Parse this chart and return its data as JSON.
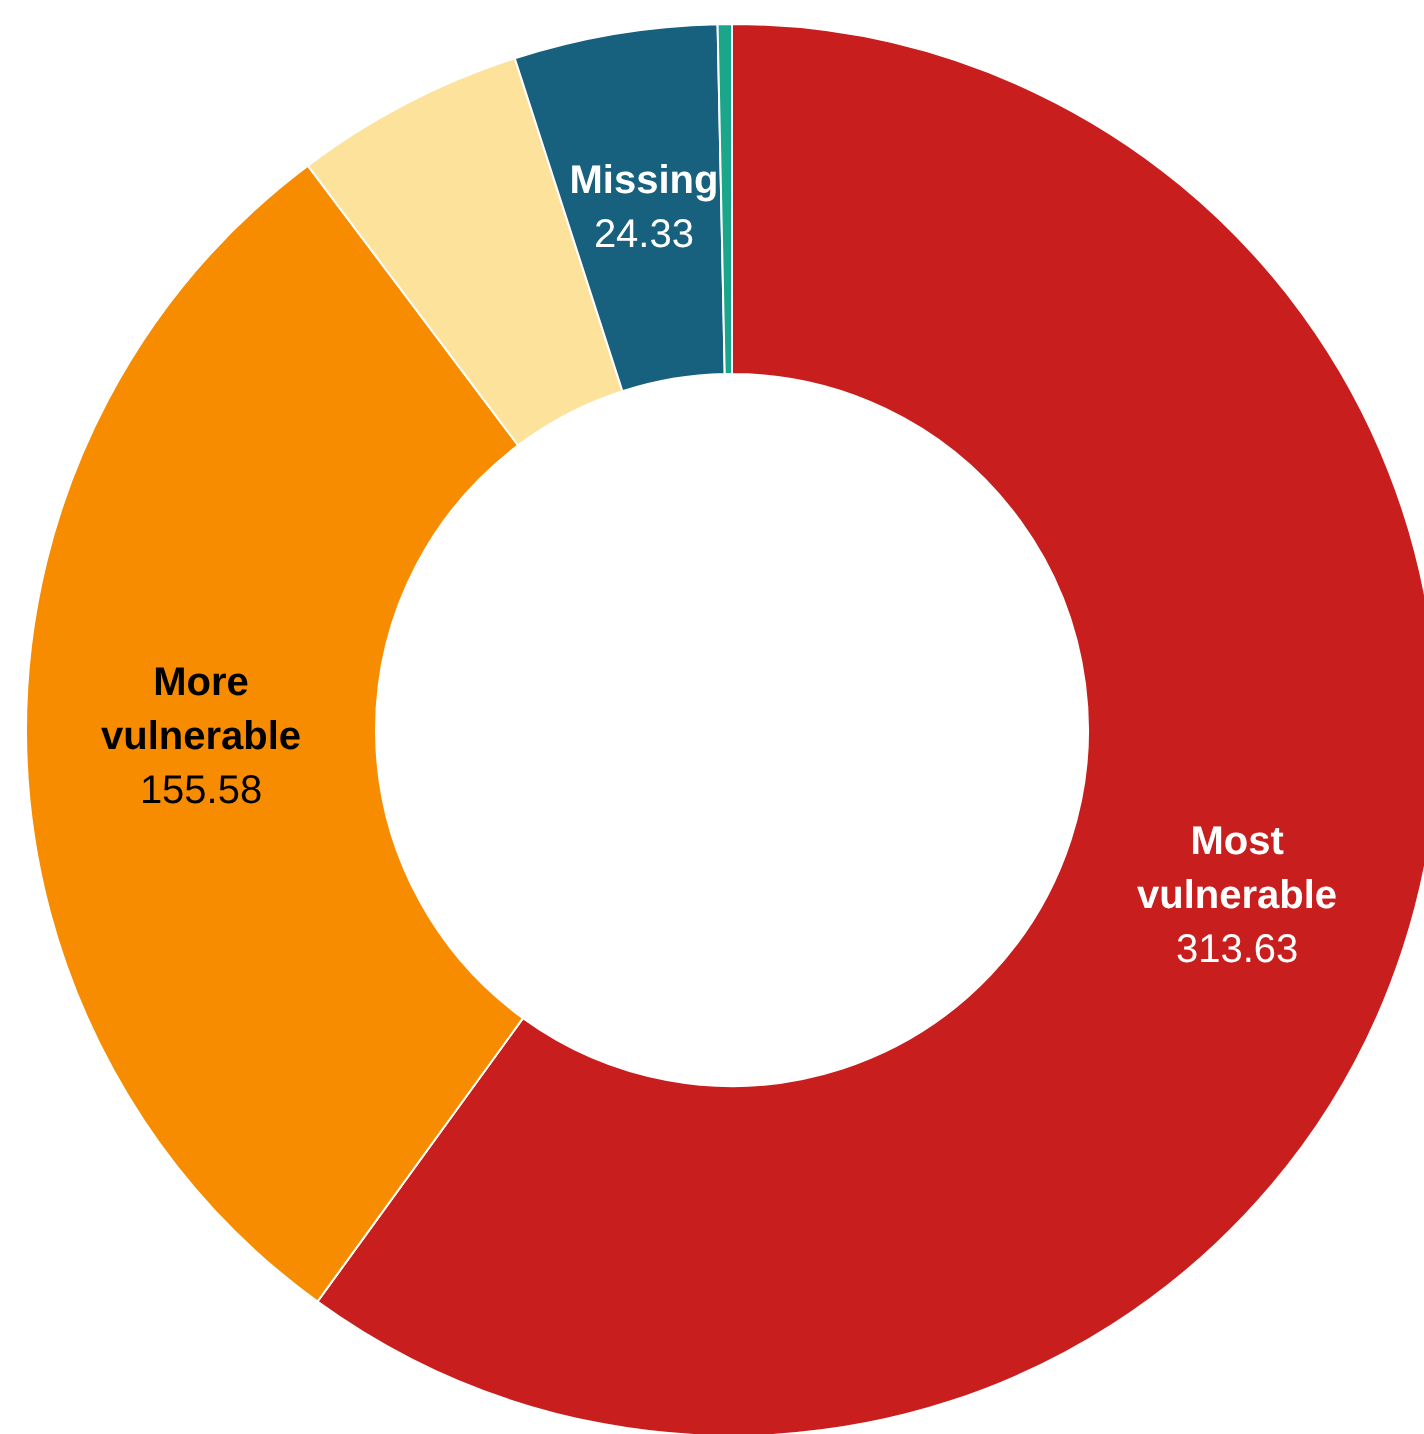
{
  "chart_data": {
    "type": "donut",
    "categories": [
      "Most vulnerable",
      "More vulnerable",
      null,
      "Missing",
      null
    ],
    "values": [
      313.63,
      155.58,
      27.6,
      24.33,
      1.7
    ],
    "colors": [
      "#c81e1e",
      "#f78c00",
      "#fde29c",
      "#17607e",
      "#1aa68a"
    ],
    "value_labels": [
      "313.63",
      "155.58",
      null,
      "24.33",
      null
    ]
  }
}
